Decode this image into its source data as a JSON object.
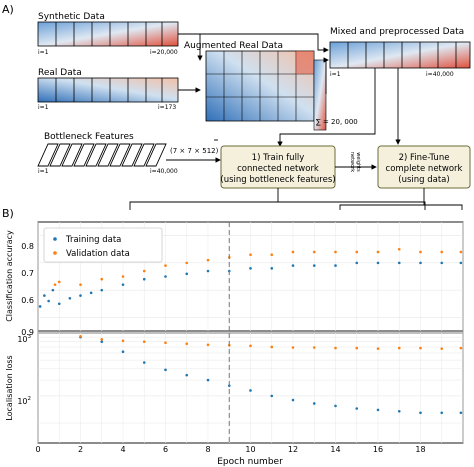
{
  "panel_a": {
    "label": "A)",
    "synthetic": {
      "title": "Synthetic Data",
      "i_start": "i=1",
      "i_end": "i=20,000"
    },
    "real": {
      "title": "Real Data",
      "i_start": "i=1",
      "i_end": "i=173"
    },
    "augmented": {
      "title": "Augmented Real Data",
      "sum": "∑ = 20, 000"
    },
    "mixed": {
      "title": "Mixed and preprocessed Data",
      "i_start": "i=1",
      "i_end": "i=40,000"
    },
    "bottleneck": {
      "title": "Bottleneck Features",
      "dims": "(7 × 7 × 512)",
      "i_start": "i=1",
      "i_end": "i=40,000"
    },
    "box1": {
      "line1": "1) Train fully",
      "line2": "connected network",
      "line3": "(using bottleneck features)"
    },
    "box2": {
      "line1": "2) Fine-Tune",
      "line2": "complete network",
      "line3": "(using data)"
    },
    "weights_label_1": "network",
    "weights_label_2": "weights"
  },
  "panel_b": {
    "label": "B)",
    "x_label": "Epoch number",
    "top_ylabel": "Classification accuracy",
    "bottom_ylabel": "Localisation loss",
    "legend": {
      "training": "Training data",
      "validation": "Validation data"
    },
    "top_yticks": [
      "0.6",
      "0.7",
      "0.8",
      "0.9"
    ],
    "bottom_yticks_base": [
      "10",
      "10"
    ],
    "bottom_yticks_exp": [
      "2",
      "3"
    ],
    "x_ticks": [
      "0",
      "2",
      "4",
      "6",
      "8",
      "10",
      "12",
      "14",
      "16",
      "18"
    ]
  },
  "colors": {
    "training": "#1f77b4",
    "validation": "#ff7f0e",
    "box_fill": "#f5f0dc",
    "box_border": "#6b6b3a"
  },
  "chart_data": [
    {
      "type": "scatter",
      "title": "",
      "xlabel": "Epoch number",
      "ylabel": "Classification accuracy",
      "xlim": [
        0,
        20
      ],
      "ylim": [
        0.55,
        0.95
      ],
      "grid": true,
      "legend": "top-left",
      "divider_epoch": 9,
      "series": [
        {
          "name": "Training data",
          "x": [
            0.1,
            0.3,
            0.5,
            0.7,
            1.0,
            1.5,
            2.0,
            2.5,
            3.0,
            4.0,
            5.0,
            6.0,
            7.0,
            8.0,
            9.0,
            10.0,
            11.0,
            12.0,
            13.0,
            14.0,
            15.0,
            16.0,
            17.0,
            18.0,
            19.0,
            19.9
          ],
          "y": [
            0.64,
            0.68,
            0.66,
            0.7,
            0.65,
            0.67,
            0.68,
            0.69,
            0.7,
            0.72,
            0.74,
            0.75,
            0.76,
            0.77,
            0.77,
            0.78,
            0.78,
            0.79,
            0.79,
            0.79,
            0.8,
            0.8,
            0.8,
            0.8,
            0.8,
            0.8
          ]
        },
        {
          "name": "Validation data",
          "x": [
            0.8,
            1.0,
            2.0,
            3.0,
            4.0,
            5.0,
            6.0,
            7.0,
            8.0,
            9.0,
            10.0,
            11.0,
            12.0,
            13.0,
            14.0,
            15.0,
            16.0,
            17.0,
            18.0,
            19.0,
            19.9
          ],
          "y": [
            0.72,
            0.73,
            0.72,
            0.74,
            0.75,
            0.77,
            0.79,
            0.8,
            0.81,
            0.82,
            0.83,
            0.83,
            0.84,
            0.84,
            0.84,
            0.84,
            0.84,
            0.85,
            0.84,
            0.84,
            0.84
          ]
        }
      ]
    },
    {
      "type": "scatter",
      "title": "",
      "xlabel": "Epoch number",
      "ylabel": "Localisation loss",
      "yscale": "log",
      "xlim": [
        0,
        20
      ],
      "ylim": [
        60,
        1000
      ],
      "grid": true,
      "divider_epoch": 9,
      "series": [
        {
          "name": "Training data",
          "x": [
            2.0,
            3.0,
            4.0,
            5.0,
            6.0,
            7.0,
            8.0,
            9.0,
            10.0,
            11.0,
            12.0,
            13.0,
            14.0,
            15.0,
            16.0,
            17.0,
            18.0,
            19.0,
            19.9
          ],
          "y": [
            900,
            800,
            620,
            470,
            390,
            340,
            300,
            260,
            230,
            200,
            180,
            165,
            155,
            145,
            140,
            135,
            130,
            130,
            130
          ]
        },
        {
          "name": "Validation data",
          "x": [
            2.0,
            3.0,
            4.0,
            5.0,
            6.0,
            7.0,
            8.0,
            9.0,
            10.0,
            11.0,
            12.0,
            13.0,
            14.0,
            15.0,
            16.0,
            17.0,
            18.0,
            19.0,
            19.9
          ],
          "y": [
            920,
            850,
            820,
            800,
            780,
            760,
            740,
            730,
            720,
            700,
            690,
            690,
            680,
            680,
            670,
            680,
            680,
            670,
            680
          ]
        }
      ]
    }
  ]
}
